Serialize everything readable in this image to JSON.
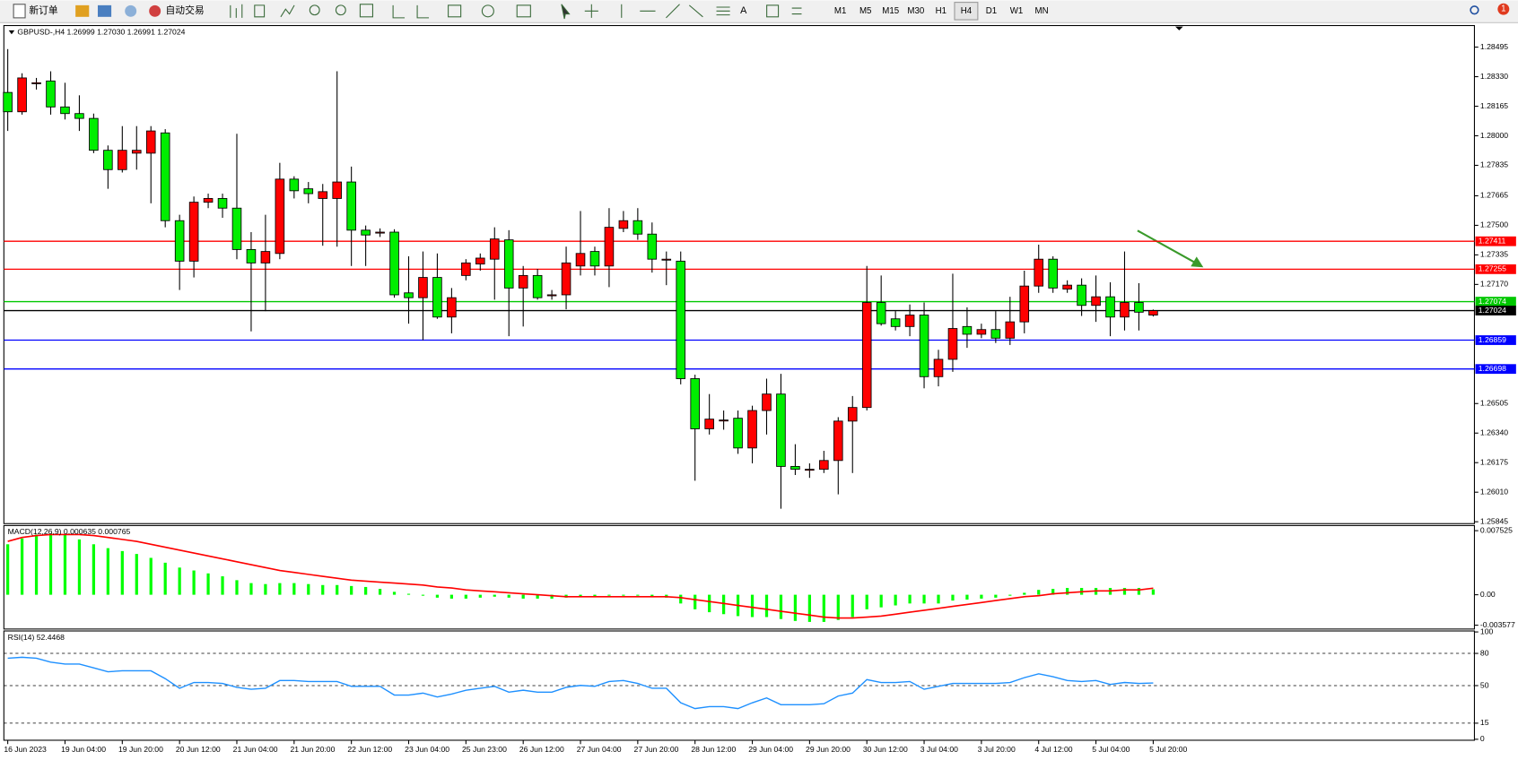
{
  "toolbar": {
    "new_order": "新订单",
    "auto_trading": "自动交易",
    "timeframes": [
      "M1",
      "M5",
      "M15",
      "M30",
      "H1",
      "H4",
      "D1",
      "W1",
      "MN"
    ],
    "active_timeframe": "H4",
    "text_tool": "A",
    "notifications": 1
  },
  "chart_data": [
    {
      "type": "candlestick",
      "title": "GBPUSD-,H4  1.26999 1.27030 1.26991 1.27024",
      "categories": [
        "16 Jun 2023",
        null,
        null,
        null,
        "19 Jun 04:00",
        null,
        null,
        null,
        "19 Jun 20:00",
        null,
        null,
        null,
        "20 Jun 12:00",
        null,
        null,
        null,
        "21 Jun 04:00",
        null,
        null,
        null,
        "21 Jun 20:00",
        null,
        null,
        null,
        "22 Jun 12:00",
        null,
        null,
        null,
        "23 Jun 04:00",
        null,
        null,
        null,
        "25 Jun 23:00",
        null,
        null,
        null,
        "26 Jun 12:00",
        null,
        null,
        null,
        "27 Jun 04:00",
        null,
        null,
        null,
        "27 Jun 20:00",
        null,
        null,
        null,
        "28 Jun 12:00",
        null,
        null,
        null,
        "29 Jun 04:00",
        null,
        null,
        null,
        "29 Jun 20:00",
        null,
        null,
        null,
        "30 Jun 12:00",
        null,
        null,
        null,
        "3 Jul 04:00",
        null,
        null,
        null,
        "3 Jul 20:00",
        null,
        null,
        null,
        "4 Jul 12:00",
        null,
        null,
        null,
        "5 Jul 04:00",
        null,
        null,
        null,
        "5 Jul 20:00"
      ],
      "open": [
        1.28242,
        1.28134,
        1.28296,
        1.28306,
        1.28161,
        1.28124,
        1.28097,
        1.27919,
        1.27811,
        1.27903,
        1.27903,
        1.28016,
        1.27526,
        1.273,
        1.27629,
        1.2765,
        1.27596,
        1.27365,
        1.2729,
        1.27343,
        1.27758,
        1.27704,
        1.2765,
        1.2765,
        1.27742,
        1.27473,
        1.27462,
        1.27462,
        1.27123,
        1.27096,
        1.27209,
        1.26988,
        1.2722,
        1.27284,
        1.27311,
        1.27419,
        1.2715,
        1.2722,
        1.27112,
        1.27112,
        1.27273,
        1.27354,
        1.27273,
        1.27483,
        1.27526,
        1.27451,
        1.27311,
        1.273,
        1.26644,
        1.26364,
        1.26413,
        1.26423,
        1.26257,
        1.26466,
        1.26558,
        1.26154,
        1.26138,
        1.26138,
        1.26187,
        1.26407,
        1.26483,
        1.27069,
        1.26978,
        1.26935,
        1.26999,
        1.26655,
        1.26752,
        1.26935,
        1.26892,
        1.26918,
        1.2687,
        1.26961,
        1.27161,
        1.27311,
        1.27144,
        1.27166,
        1.27053,
        1.27101,
        1.26988,
        1.27069,
        1.26999
      ],
      "high": [
        1.28484,
        1.28349,
        1.28323,
        1.2836,
        1.28296,
        1.28226,
        1.28124,
        1.27946,
        1.28054,
        1.28054,
        1.28054,
        1.28037,
        1.27559,
        1.27661,
        1.27677,
        1.27677,
        1.28011,
        1.27462,
        1.27559,
        1.27849,
        1.27774,
        1.27742,
        1.27731,
        1.2836,
        1.27828,
        1.27499,
        1.27483,
        1.27478,
        1.27327,
        1.27354,
        1.27343,
        1.2715,
        1.27311,
        1.27343,
        1.27489,
        1.27473,
        1.27273,
        1.27257,
        1.27139,
        1.27381,
        1.2758,
        1.27381,
        1.27596,
        1.2758,
        1.27596,
        1.27516,
        1.27354,
        1.27354,
        1.26666,
        1.26558,
        1.26466,
        1.26466,
        1.26493,
        1.26644,
        1.26671,
        1.26278,
        1.26171,
        1.26241,
        1.26429,
        1.26547,
        1.27273,
        1.2722,
        1.27021,
        1.27058,
        1.27069,
        1.26805,
        1.2723,
        1.27042,
        1.26951,
        1.27021,
        1.27101,
        1.27247,
        1.27392,
        1.27327,
        1.27193,
        1.27204,
        1.2722,
        1.27182,
        1.27354,
        1.27177,
        1.2703
      ],
      "low": [
        1.28027,
        1.28118,
        1.28258,
        1.28118,
        1.28091,
        1.28027,
        1.27903,
        1.27704,
        1.27795,
        1.27811,
        1.27623,
        1.27489,
        1.27139,
        1.27209,
        1.27596,
        1.27542,
        1.27311,
        1.26908,
        1.27021,
        1.27311,
        1.2765,
        1.27623,
        1.27386,
        1.27381,
        1.27273,
        1.27273,
        1.27435,
        1.27096,
        1.26951,
        1.26859,
        1.26978,
        1.26897,
        1.27193,
        1.27247,
        1.27085,
        1.26881,
        1.26935,
        1.27085,
        1.27085,
        1.27031,
        1.2722,
        1.2722,
        1.27155,
        1.27462,
        1.27419,
        1.27236,
        1.27166,
        1.26612,
        1.26074,
        1.26332,
        1.26359,
        1.26224,
        1.26171,
        1.26332,
        1.25918,
        1.26106,
        1.2609,
        1.26117,
        1.25998,
        1.26117,
        1.26466,
        1.2694,
        1.26913,
        1.26881,
        1.2659,
        1.26601,
        1.26682,
        1.26816,
        1.2687,
        1.26843,
        1.26832,
        1.26897,
        1.27123,
        1.27123,
        1.27123,
        1.26994,
        1.26961,
        1.26881,
        1.26913,
        1.26913,
        1.26991
      ],
      "close": [
        1.28134,
        1.28323,
        1.28296,
        1.28161,
        1.28124,
        1.28097,
        1.27919,
        1.27811,
        1.27919,
        1.27919,
        1.28027,
        1.27526,
        1.273,
        1.27629,
        1.2765,
        1.27596,
        1.27365,
        1.2729,
        1.27354,
        1.27758,
        1.27693,
        1.27677,
        1.27688,
        1.27742,
        1.27473,
        1.27446,
        1.27462,
        1.27112,
        1.27096,
        1.27209,
        1.26988,
        1.27096,
        1.2729,
        1.27317,
        1.27424,
        1.2715,
        1.2722,
        1.27096,
        1.27112,
        1.2729,
        1.27343,
        1.27273,
        1.27489,
        1.27526,
        1.27451,
        1.27311,
        1.27311,
        1.26644,
        1.26364,
        1.26418,
        1.26413,
        1.26257,
        1.26466,
        1.26558,
        1.26154,
        1.26138,
        1.26138,
        1.26187,
        1.26407,
        1.26483,
        1.27069,
        1.26951,
        1.26935,
        1.26999,
        1.26655,
        1.26752,
        1.26924,
        1.26892,
        1.26918,
        1.2687,
        1.26961,
        1.27161,
        1.27311,
        1.2715,
        1.27166,
        1.27053,
        1.27101,
        1.26988,
        1.27069,
        1.27015,
        1.27024
      ],
      "bull_color": "#ff0000",
      "bear_color": "#00ee00",
      "ylim": [
        1.2584,
        1.2861
      ],
      "yticks": [
        1.28495,
        {
          "value": 1.2833,
          "label": "1.28330"
        },
        1.28165,
        {
          "value": 1.28,
          "label": "1.28000"
        },
        1.27835,
        1.27665,
        {
          "value": 1.275,
          "label": "1.27500"
        },
        1.27335,
        {
          "value": 1.2717,
          "label": "1.27170"
        },
        1.26505,
        {
          "value": 1.2634,
          "label": "1.26340"
        },
        1.26175,
        {
          "value": 1.2601,
          "label": "1.26010"
        },
        1.25845
      ],
      "hlines": [
        {
          "value": 1.27411,
          "color": "#ff0000"
        },
        {
          "value": 1.27255,
          "color": "#ff0000"
        },
        {
          "value": 1.27074,
          "color": "#00c800"
        },
        {
          "value": 1.27024,
          "color": "#000000"
        },
        {
          "value": 1.26859,
          "color": "#0000ff"
        },
        {
          "value": 1.26698,
          "color": "#0000ff"
        }
      ]
    },
    {
      "type": "macd",
      "title": "MACD(12,26,9) 0.000635 0.000765",
      "color": "#00ff00",
      "values": [
        0.005928,
        0.006612,
        0.007068,
        0.007182,
        0.007068,
        0.006498,
        0.005928,
        0.005472,
        0.00513,
        0.004788,
        0.004332,
        0.003762,
        0.003192,
        0.00285,
        0.002508,
        0.002166,
        0.00171,
        0.001368,
        0.001254,
        0.001368,
        0.001368,
        0.001254,
        0.00114,
        0.00114,
        0.001026,
        0.000912,
        0.000684,
        0.000342,
        0.000114,
        -0.000114,
        -0.000342,
        -0.000456,
        -0.000456,
        -0.000342,
        -0.000228,
        -0.000342,
        -0.000456,
        -0.000456,
        -0.000456,
        -0.000342,
        -0.000228,
        -0.000228,
        -0.000114,
        -0.000114,
        -0.000114,
        -0.000228,
        -0.000342,
        -0.001026,
        -0.00171,
        -0.002052,
        -0.00228,
        -0.002508,
        -0.002622,
        -0.002622,
        -0.00285,
        -0.003078,
        -0.003192,
        -0.003192,
        -0.002964,
        -0.002622,
        -0.00171,
        -0.001482,
        -0.001254,
        -0.001026,
        -0.001026,
        -0.001026,
        -0.000684,
        -0.00057,
        -0.000456,
        -0.000342,
        -0.000114,
        0.000228,
        0.00057,
        0.000684,
        0.000798,
        0.000798,
        0.000798,
        0.000798,
        0.000798,
        0.000798,
        0.000635
      ],
      "signal": {
        "color": "#ff0000",
        "values": [
          0.00627,
          0.006726,
          0.006954,
          0.007068,
          0.007068,
          0.007068,
          0.006954,
          0.006726,
          0.006498,
          0.00627,
          0.005928,
          0.005586,
          0.005244,
          0.004902,
          0.00456,
          0.004218,
          0.003876,
          0.003534,
          0.003192,
          0.00285,
          0.002622,
          0.002394,
          0.002166,
          0.001938,
          0.00171,
          0.001596,
          0.001482,
          0.001368,
          0.001254,
          0.00114,
          0.000912,
          0.000798,
          0.00057,
          0.000456,
          0.000342,
          0.000228,
          0.000114,
          0,
          -0.000114,
          -0.000228,
          -0.000228,
          -0.000228,
          -0.000228,
          -0.000228,
          -0.000228,
          -0.000228,
          -0.000228,
          -0.000342,
          -0.00057,
          -0.000798,
          -0.001026,
          -0.001254,
          -0.001482,
          -0.00171,
          -0.001938,
          -0.002166,
          -0.002394,
          -0.002622,
          -0.002736,
          -0.002736,
          -0.002622,
          -0.002508,
          -0.00228,
          -0.002052,
          -0.001824,
          -0.001596,
          -0.001368,
          -0.00114,
          -0.000912,
          -0.000684,
          -0.000456,
          -0.000228,
          -0.000114,
          0.000114,
          0.000228,
          0.000342,
          0.000456,
          0.000456,
          0.00057,
          0.00057,
          0.000765
        ]
      },
      "ylim": [
        -0.0038,
        0.0079
      ],
      "yticks": [
        0.007525,
        {
          "value": 0,
          "label": "0.00"
        },
        -0.003577
      ]
    },
    {
      "type": "line",
      "title": "RSI(14) 52.4468",
      "color": "#1e90ff",
      "values": [
        75.5,
        76.4,
        75.5,
        71.9,
        70.1,
        70.1,
        66.5,
        62.9,
        63.8,
        63.8,
        63.8,
        56.5,
        47.5,
        52.9,
        52.9,
        52.0,
        48.4,
        46.6,
        47.5,
        54.7,
        54.7,
        53.8,
        53.8,
        53.8,
        49.3,
        49.3,
        49.3,
        41.2,
        41.2,
        43.0,
        39.4,
        42.1,
        45.7,
        47.5,
        49.3,
        43.9,
        45.7,
        43.9,
        43.9,
        48.4,
        50.2,
        49.3,
        53.8,
        54.7,
        52.0,
        47.5,
        47.5,
        34.0,
        28.6,
        30.4,
        30.4,
        28.6,
        34.0,
        38.5,
        32.2,
        32.2,
        32.2,
        33.1,
        40.3,
        43.0,
        55.6,
        52.9,
        52.9,
        53.8,
        46.6,
        49.3,
        52.0,
        52.0,
        52.0,
        52.0,
        52.9,
        57.4,
        61.0,
        58.3,
        54.7,
        53.8,
        54.7,
        51.1,
        52.9,
        52.0,
        52.4468
      ],
      "ylim": [
        0,
        100
      ],
      "yticks": [
        100,
        80,
        50,
        15,
        0
      ],
      "levels": [
        80,
        50,
        15
      ]
    }
  ]
}
